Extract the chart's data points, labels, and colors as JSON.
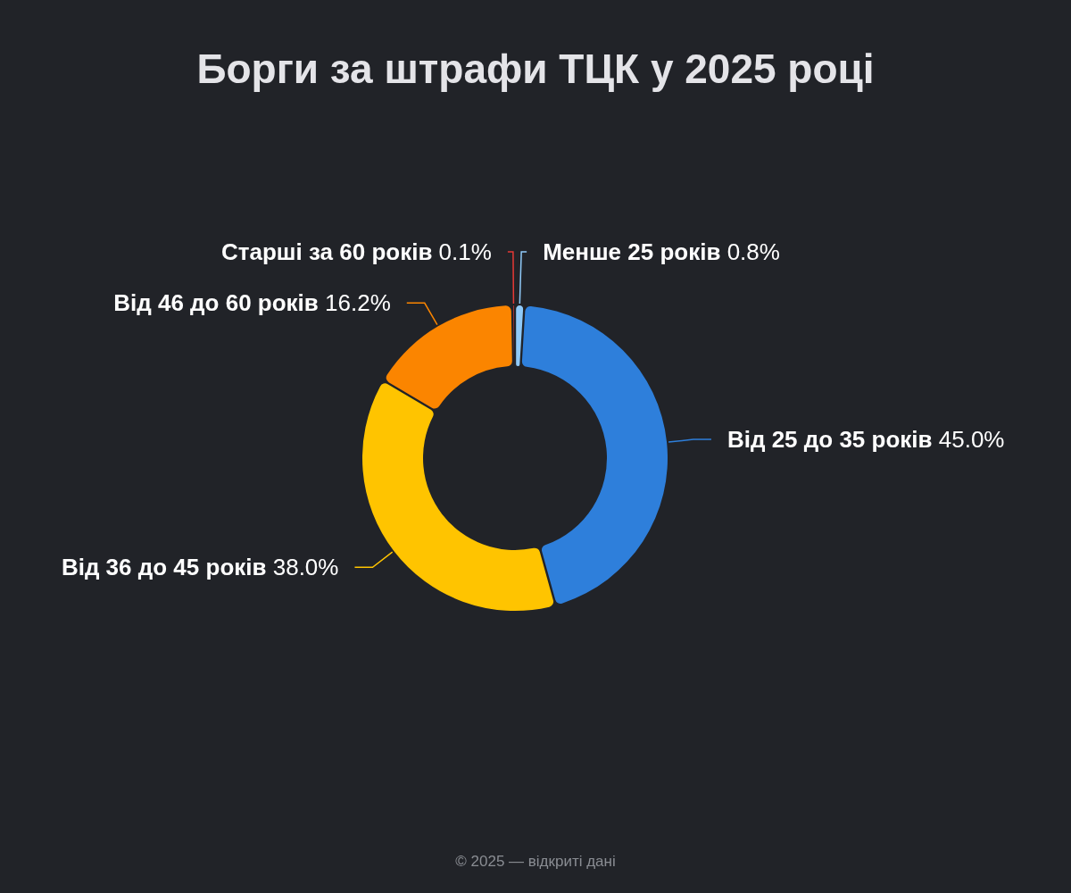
{
  "chart_data": {
    "type": "donut",
    "title": "Борги за штрафи ТЦК у 2025 році",
    "categories": [
      "Менше 25 років",
      "Від 25 до 35 років",
      "Від 36 до 45 років",
      "Від 46 до 60 років",
      "Старші за 60 років"
    ],
    "values": [
      0.8,
      45.0,
      38.0,
      16.2,
      0.1
    ],
    "value_labels": [
      "0.8%",
      "45.0%",
      "38.0%",
      "16.2%",
      "0.1%"
    ],
    "colors": [
      "#90caf9",
      "#2e7fdb",
      "#ffc400",
      "#fb8500",
      "#e53935"
    ],
    "annotations": [
      "© 2025 — відкриті дані"
    ]
  }
}
